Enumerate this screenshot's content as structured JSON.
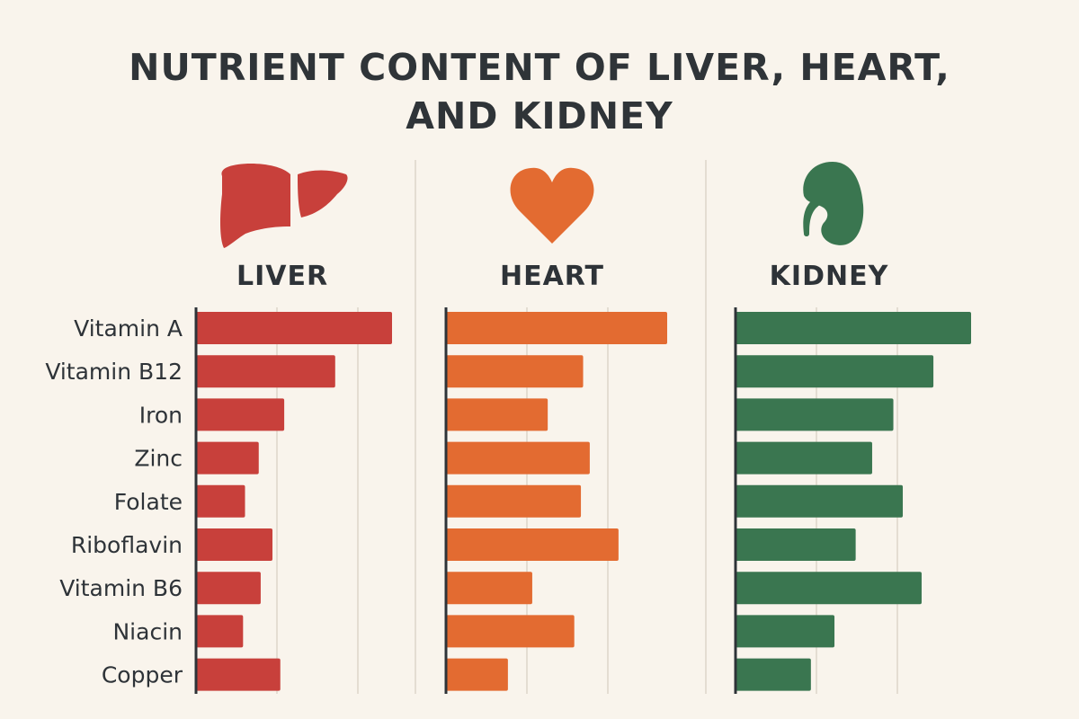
{
  "title_lines": [
    "NUTRIENT CONTENT OF LIVER, HEART,",
    "AND KIDNEY"
  ],
  "colors": {
    "background": "#f9f4ec",
    "text": "#2e3338",
    "gridline": "#e4ddd2",
    "axis": "#2e3338"
  },
  "chart_data": {
    "type": "bar",
    "orientation": "horizontal",
    "grid": true,
    "categories": [
      "Vitamin A",
      "Vitamin B12",
      "Iron",
      "Zinc",
      "Folate",
      "Riboflavin",
      "Vitamin B6",
      "Niacin",
      "Copper"
    ],
    "panels": [
      {
        "name": "LIVER",
        "icon": "liver-icon",
        "color": "#c8403b",
        "values": [
          100,
          71,
          45,
          32,
          25,
          39,
          33,
          24,
          43
        ]
      },
      {
        "name": "HEART",
        "icon": "heart-icon",
        "color": "#e36b31",
        "values": [
          100,
          62,
          46,
          65,
          61,
          78,
          39,
          58,
          28
        ]
      },
      {
        "name": "KIDNEY",
        "icon": "kidney-icon",
        "color": "#3a7650",
        "values": [
          100,
          84,
          67,
          58,
          71,
          51,
          79,
          42,
          32
        ]
      }
    ]
  }
}
